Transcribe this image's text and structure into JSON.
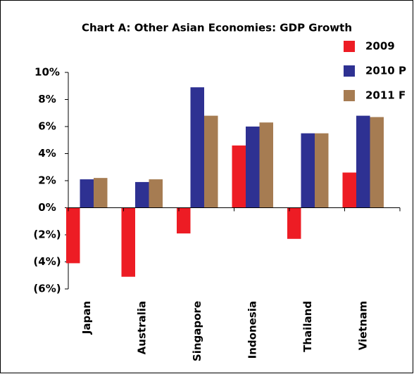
{
  "chart_data": {
    "type": "bar",
    "title": "Chart A: Other Asian Economies: GDP Growth",
    "categories": [
      "Japan",
      "Australia",
      "Singapore",
      "Indonesia",
      "Thailand",
      "Vietnam"
    ],
    "series": [
      {
        "name": "2009",
        "color": "#ed1c24",
        "values": [
          -4.1,
          -5.1,
          -1.9,
          4.6,
          -2.3,
          2.6
        ]
      },
      {
        "name": "2010 P",
        "color": "#2e3192",
        "values": [
          2.1,
          1.9,
          8.9,
          6.0,
          5.5,
          6.8
        ]
      },
      {
        "name": "2011 F",
        "color": "#a67c52",
        "values": [
          2.2,
          2.1,
          6.8,
          6.3,
          5.5,
          6.7
        ]
      }
    ],
    "ylim": [
      -6,
      10
    ],
    "yticks": [
      {
        "value": 10,
        "label": "10%"
      },
      {
        "value": 8,
        "label": "8%"
      },
      {
        "value": 6,
        "label": "6%"
      },
      {
        "value": 4,
        "label": "4%"
      },
      {
        "value": 2,
        "label": "2%"
      },
      {
        "value": 0,
        "label": "0%"
      },
      {
        "value": -2,
        "label": "(2%)"
      },
      {
        "value": -4,
        "label": "(4%)"
      },
      {
        "value": -6,
        "label": "(6%)"
      }
    ],
    "negative_tick_color": "#ed1c24",
    "legend": "top-right",
    "grid": false
  }
}
